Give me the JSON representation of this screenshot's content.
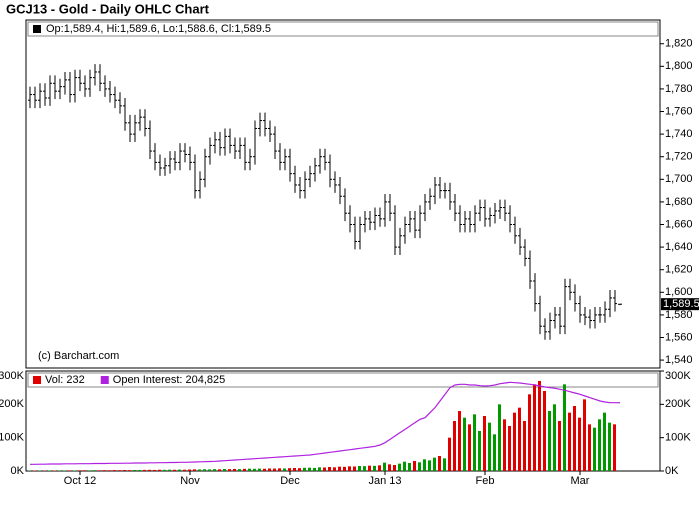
{
  "chart_data": [
    {
      "type": "ohlc",
      "title": "GCJ13 - Gold - Daily OHLC Chart",
      "legend": "Op:1,589.4, Hi:1,589.6, Lo:1,588.6, Cl:1,589.5",
      "credit": "(c) Barchart.com",
      "last_label": "1,589.5",
      "color": "#000000",
      "grid": false,
      "ylim": [
        1533,
        1841
      ],
      "yticks": [
        {
          "value": 1540,
          "label": "1,540"
        },
        {
          "value": 1560,
          "label": "1,560"
        },
        {
          "value": 1580,
          "label": "1,580"
        },
        {
          "value": 1600,
          "label": "1,600"
        },
        {
          "value": 1620,
          "label": "1,620"
        },
        {
          "value": 1640,
          "label": "1,640"
        },
        {
          "value": 1660,
          "label": "1,660"
        },
        {
          "value": 1680,
          "label": "1,680"
        },
        {
          "value": 1700,
          "label": "1,700"
        },
        {
          "value": 1720,
          "label": "1,720"
        },
        {
          "value": 1740,
          "label": "1,740"
        },
        {
          "value": 1760,
          "label": "1,760"
        },
        {
          "value": 1780,
          "label": "1,780"
        },
        {
          "value": 1800,
          "label": "1,800"
        },
        {
          "value": 1820,
          "label": "1,820"
        }
      ],
      "open": [
        1770,
        1775,
        1770,
        1778,
        1772,
        1785,
        1778,
        1782,
        1788,
        1775,
        1790,
        1785,
        1780,
        1790,
        1795,
        1785,
        1780,
        1775,
        1770,
        1765,
        1750,
        1740,
        1750,
        1755,
        1745,
        1725,
        1715,
        1710,
        1712,
        1718,
        1715,
        1725,
        1722,
        1715,
        1690,
        1700,
        1720,
        1730,
        1735,
        1728,
        1738,
        1730,
        1725,
        1730,
        1715,
        1720,
        1745,
        1752,
        1745,
        1740,
        1725,
        1715,
        1720,
        1705,
        1695,
        1690,
        1700,
        1705,
        1712,
        1720,
        1715,
        1700,
        1695,
        1685,
        1670,
        1660,
        1645,
        1660,
        1665,
        1662,
        1668,
        1665,
        1680,
        1670,
        1640,
        1650,
        1660,
        1665,
        1655,
        1670,
        1680,
        1685,
        1695,
        1690,
        1690,
        1680,
        1670,
        1660,
        1665,
        1660,
        1670,
        1675,
        1665,
        1668,
        1672,
        1675,
        1670,
        1660,
        1650,
        1640,
        1630,
        1610,
        1590,
        1570,
        1565,
        1575,
        1580,
        1570,
        1605,
        1600,
        1590,
        1580,
        1578,
        1575,
        1580,
        1580,
        1585,
        1595,
        1589.4
      ],
      "high": [
        1782,
        1782,
        1785,
        1785,
        1792,
        1792,
        1789,
        1795,
        1795,
        1797,
        1797,
        1792,
        1797,
        1802,
        1802,
        1792,
        1787,
        1782,
        1777,
        1772,
        1757,
        1757,
        1762,
        1762,
        1752,
        1732,
        1722,
        1719,
        1725,
        1725,
        1732,
        1732,
        1729,
        1722,
        1707,
        1727,
        1737,
        1742,
        1742,
        1745,
        1745,
        1737,
        1737,
        1737,
        1727,
        1752,
        1759,
        1759,
        1752,
        1747,
        1732,
        1727,
        1727,
        1712,
        1702,
        1707,
        1712,
        1719,
        1727,
        1727,
        1722,
        1707,
        1702,
        1692,
        1677,
        1667,
        1667,
        1672,
        1672,
        1675,
        1675,
        1687,
        1687,
        1677,
        1657,
        1667,
        1672,
        1672,
        1677,
        1687,
        1692,
        1702,
        1702,
        1697,
        1697,
        1687,
        1677,
        1672,
        1672,
        1677,
        1682,
        1682,
        1675,
        1679,
        1682,
        1682,
        1677,
        1667,
        1657,
        1647,
        1637,
        1617,
        1597,
        1577,
        1582,
        1587,
        1587,
        1612,
        1612,
        1607,
        1597,
        1587,
        1585,
        1587,
        1587,
        1592,
        1602,
        1602,
        1589.6
      ],
      "low": [
        1763,
        1763,
        1763,
        1765,
        1765,
        1771,
        1771,
        1775,
        1768,
        1768,
        1778,
        1773,
        1773,
        1783,
        1778,
        1773,
        1768,
        1763,
        1758,
        1743,
        1733,
        1733,
        1743,
        1738,
        1718,
        1708,
        1703,
        1703,
        1705,
        1708,
        1708,
        1715,
        1708,
        1683,
        1683,
        1693,
        1713,
        1723,
        1721,
        1721,
        1723,
        1718,
        1718,
        1708,
        1708,
        1713,
        1738,
        1738,
        1733,
        1718,
        1708,
        1708,
        1698,
        1688,
        1683,
        1683,
        1693,
        1698,
        1705,
        1708,
        1693,
        1688,
        1678,
        1663,
        1653,
        1638,
        1638,
        1653,
        1655,
        1655,
        1658,
        1658,
        1663,
        1633,
        1633,
        1643,
        1653,
        1648,
        1648,
        1663,
        1673,
        1678,
        1683,
        1683,
        1673,
        1663,
        1653,
        1653,
        1653,
        1653,
        1663,
        1658,
        1658,
        1661,
        1665,
        1663,
        1653,
        1643,
        1633,
        1623,
        1603,
        1583,
        1563,
        1558,
        1558,
        1568,
        1563,
        1563,
        1593,
        1583,
        1573,
        1571,
        1568,
        1568,
        1573,
        1573,
        1578,
        1583,
        1588.6
      ],
      "close": [
        1775,
        1770,
        1778,
        1772,
        1785,
        1778,
        1782,
        1788,
        1775,
        1790,
        1785,
        1780,
        1790,
        1795,
        1785,
        1780,
        1775,
        1770,
        1765,
        1750,
        1740,
        1750,
        1755,
        1745,
        1725,
        1715,
        1710,
        1712,
        1718,
        1715,
        1725,
        1722,
        1715,
        1690,
        1700,
        1720,
        1730,
        1735,
        1728,
        1738,
        1730,
        1725,
        1730,
        1715,
        1720,
        1745,
        1752,
        1745,
        1740,
        1725,
        1715,
        1720,
        1705,
        1695,
        1690,
        1700,
        1705,
        1712,
        1720,
        1715,
        1700,
        1695,
        1685,
        1670,
        1660,
        1645,
        1660,
        1665,
        1662,
        1668,
        1665,
        1680,
        1670,
        1640,
        1650,
        1660,
        1665,
        1655,
        1670,
        1680,
        1685,
        1695,
        1690,
        1690,
        1680,
        1670,
        1660,
        1665,
        1660,
        1670,
        1675,
        1665,
        1668,
        1672,
        1675,
        1670,
        1660,
        1650,
        1640,
        1630,
        1610,
        1590,
        1570,
        1565,
        1575,
        1580,
        1570,
        1605,
        1600,
        1590,
        1580,
        1578,
        1575,
        1580,
        1580,
        1585,
        1595,
        1590,
        1589.5
      ]
    },
    {
      "type": "volume",
      "up_color": "#009900",
      "grid": false,
      "ylim": [
        0,
        300000
      ],
      "yticks": [
        {
          "value": 0,
          "label": "0K"
        },
        {
          "value": 100000,
          "label": "100K"
        },
        {
          "value": 200000,
          "label": "200K"
        },
        {
          "value": 300000,
          "label": "300K"
        }
      ],
      "categories": [
        null,
        null,
        null,
        null,
        null,
        null,
        null,
        null,
        null,
        null,
        "Oct 12",
        null,
        null,
        null,
        null,
        null,
        null,
        null,
        null,
        null,
        null,
        null,
        null,
        null,
        null,
        null,
        null,
        null,
        null,
        null,
        null,
        null,
        "Nov",
        null,
        null,
        null,
        null,
        null,
        null,
        null,
        null,
        null,
        null,
        null,
        null,
        null,
        null,
        null,
        null,
        null,
        null,
        null,
        "Dec",
        null,
        null,
        null,
        null,
        null,
        null,
        null,
        null,
        null,
        null,
        null,
        null,
        null,
        null,
        null,
        null,
        null,
        null,
        "Jan 13",
        null,
        null,
        null,
        null,
        null,
        null,
        null,
        null,
        null,
        null,
        null,
        null,
        null,
        null,
        null,
        null,
        null,
        null,
        null,
        "Feb",
        null,
        null,
        null,
        null,
        null,
        null,
        null,
        null,
        null,
        null,
        null,
        null,
        null,
        null,
        null,
        null,
        null,
        null,
        "Mar",
        null,
        null,
        null,
        null,
        null,
        null,
        null,
        null
      ],
      "series": [
        {
          "name": "Vol: 232",
          "color": "#e00000",
          "values": [
            1200,
            1500,
            1300,
            1400,
            1600,
            1500,
            1700,
            1400,
            1800,
            1600,
            2000,
            2200,
            1900,
            2400,
            2100,
            2600,
            2300,
            2800,
            2500,
            3000,
            2700,
            3100,
            2900,
            3300,
            3600,
            3200,
            3800,
            3500,
            4000,
            3700,
            4200,
            3900,
            4500,
            5000,
            4700,
            5200,
            4800,
            5500,
            5100,
            6000,
            5600,
            6200,
            5800,
            6500,
            7000,
            6600,
            7200,
            6800,
            7600,
            7300,
            8000,
            7700,
            8500,
            9000,
            8600,
            9500,
            10000,
            9200,
            11000,
            10500,
            12000,
            11000,
            13000,
            12500,
            14000,
            13500,
            15000,
            14500,
            16000,
            15500,
            17000,
            25000,
            20000,
            18000,
            22000,
            28000,
            24000,
            30000,
            26000,
            35000,
            32000,
            40000,
            45000,
            38000,
            100000,
            150000,
            180000,
            160000,
            140000,
            170000,
            120000,
            165000,
            145000,
            110000,
            200000,
            155000,
            135000,
            175000,
            190000,
            150000,
            230000,
            260000,
            270000,
            240000,
            180000,
            200000,
            150000,
            260000,
            175000,
            195000,
            160000,
            215000,
            140000,
            130000,
            155000,
            175000,
            145000,
            140000,
            232
          ]
        },
        {
          "name": "Open Interest: 204,825",
          "color": "#b020e0",
          "values": [
            20000,
            20000,
            20500,
            20500,
            21000,
            21000,
            21000,
            21500,
            21500,
            21500,
            22000,
            22000,
            22000,
            22500,
            22500,
            22500,
            23000,
            23000,
            23000,
            23500,
            23500,
            24000,
            24000,
            24000,
            24500,
            24500,
            25000,
            25000,
            25500,
            25500,
            26000,
            26000,
            26500,
            27000,
            27500,
            28000,
            28500,
            29000,
            30000,
            31000,
            32000,
            33000,
            34000,
            35000,
            36000,
            37000,
            38000,
            39000,
            40000,
            41000,
            42000,
            43000,
            44000,
            45000,
            46000,
            47000,
            48000,
            50000,
            52000,
            54000,
            56000,
            58000,
            60000,
            62000,
            64000,
            66000,
            68000,
            70000,
            72000,
            74000,
            78000,
            85000,
            95000,
            105000,
            115000,
            125000,
            135000,
            145000,
            155000,
            160000,
            175000,
            190000,
            210000,
            230000,
            250000,
            258000,
            260000,
            260000,
            258000,
            258000,
            256000,
            255000,
            256000,
            258000,
            262000,
            264000,
            266000,
            265000,
            264000,
            262000,
            260000,
            258000,
            255000,
            252000,
            250000,
            248000,
            245000,
            242000,
            238000,
            234000,
            230000,
            225000,
            220000,
            215000,
            210000,
            207000,
            205000,
            205000,
            204825
          ]
        }
      ]
    }
  ]
}
